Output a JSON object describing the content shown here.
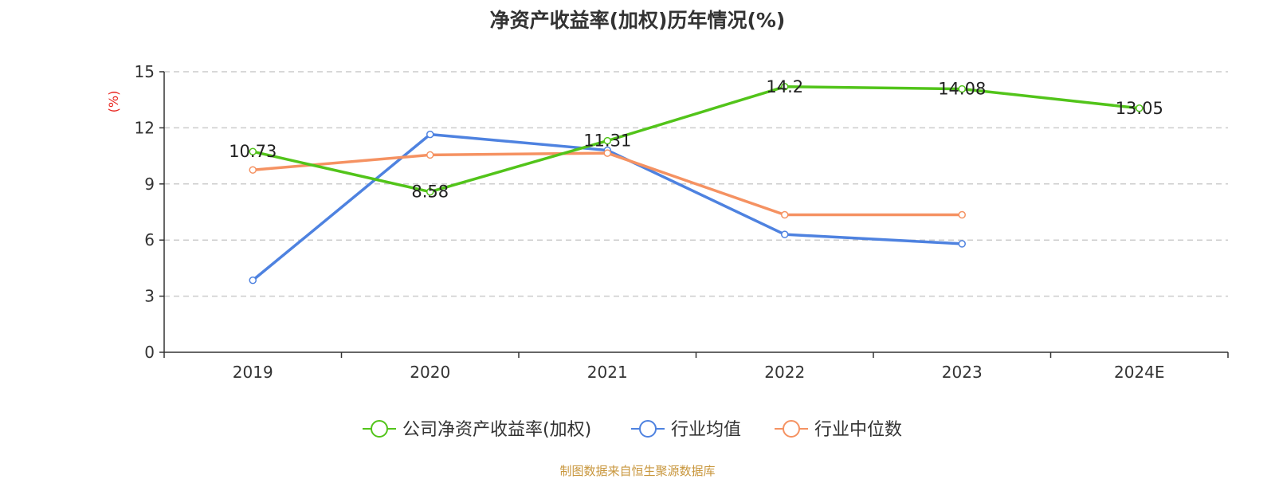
{
  "chart_data": {
    "type": "line",
    "title": "净资产收益率(加权)历年情况(%)",
    "ylabel": "(%)",
    "xlabel": "",
    "categories": [
      "2019",
      "2020",
      "2021",
      "2022",
      "2023",
      "2024E"
    ],
    "ylim": [
      0,
      15
    ],
    "yticks": [
      0,
      3,
      6,
      9,
      12,
      15
    ],
    "grid": true,
    "legend_position": "bottom",
    "series": [
      {
        "name": "公司净资产收益率(加权)",
        "color": "#52c41a",
        "values": [
          10.73,
          8.58,
          11.31,
          14.2,
          14.08,
          13.05
        ],
        "show_labels": true
      },
      {
        "name": "行业均值",
        "color": "#4e82e0",
        "values": [
          3.85,
          11.65,
          10.8,
          6.3,
          5.8,
          null
        ],
        "show_labels": false
      },
      {
        "name": "行业中位数",
        "color": "#f59262",
        "values": [
          9.75,
          10.55,
          10.65,
          7.35,
          7.35,
          null
        ],
        "show_labels": false
      }
    ]
  },
  "source": "制图数据来自恒生聚源数据库"
}
